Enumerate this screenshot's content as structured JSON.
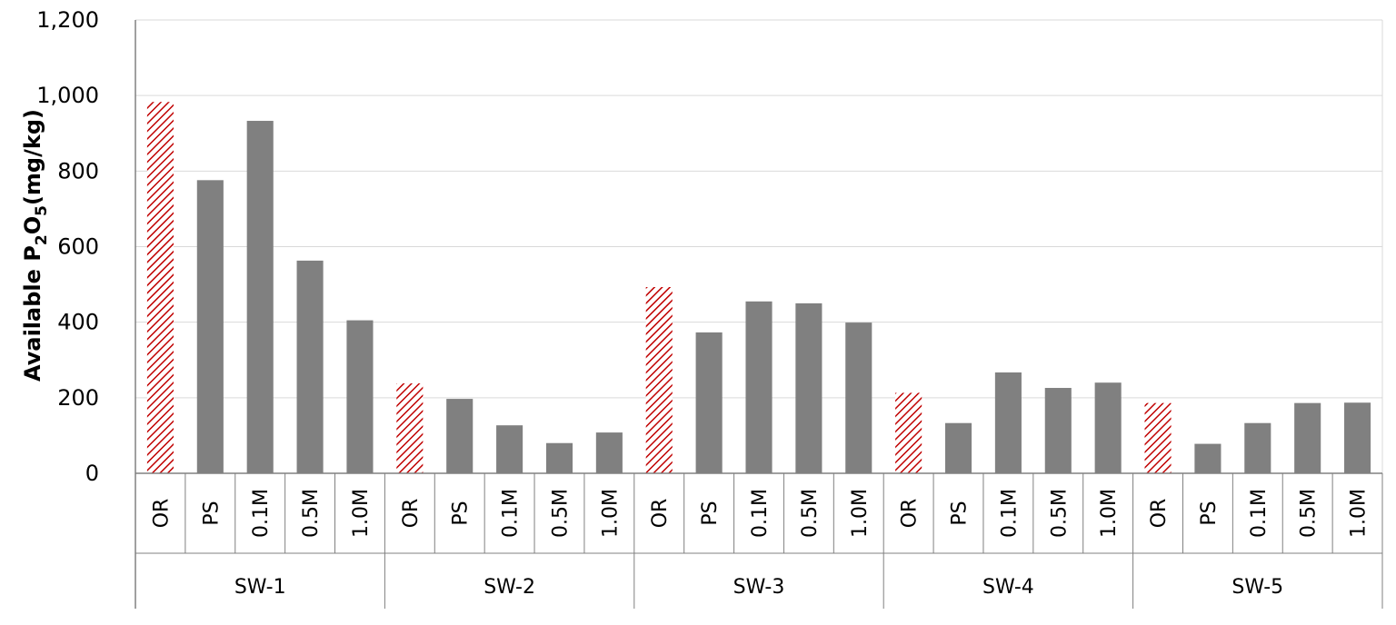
{
  "chart_data": {
    "type": "bar",
    "ylabel": "Available P2O5(mg/kg)",
    "ylabel_parts": {
      "pre": "Available P",
      "sub1": "2",
      "mid": "O",
      "sub2": "5",
      "post": "(mg/kg)"
    },
    "ylim": [
      0,
      1200
    ],
    "yticks": [
      0,
      200,
      400,
      600,
      800,
      1000,
      1200
    ],
    "ytick_labels": [
      "0",
      "200",
      "400",
      "600",
      "800",
      "1,000",
      "1,200"
    ],
    "grid": true,
    "legend": "none",
    "categories": [
      "OR",
      "PS",
      "0.1M",
      "0.5M",
      "1.0M"
    ],
    "groups": [
      {
        "name": "SW-1",
        "values": [
          983,
          776,
          933,
          563,
          405
        ]
      },
      {
        "name": "SW-2",
        "values": [
          238,
          197,
          127,
          80,
          108
        ]
      },
      {
        "name": "SW-3",
        "values": [
          493,
          373,
          455,
          450,
          399
        ]
      },
      {
        "name": "SW-4",
        "values": [
          213,
          133,
          267,
          226,
          240
        ]
      },
      {
        "name": "SW-5",
        "values": [
          186,
          78,
          133,
          186,
          187
        ]
      }
    ],
    "colors": {
      "solid": "#808080",
      "hatch": "#c00000",
      "grid": "#d9d9d9",
      "axis": "#808080"
    }
  }
}
